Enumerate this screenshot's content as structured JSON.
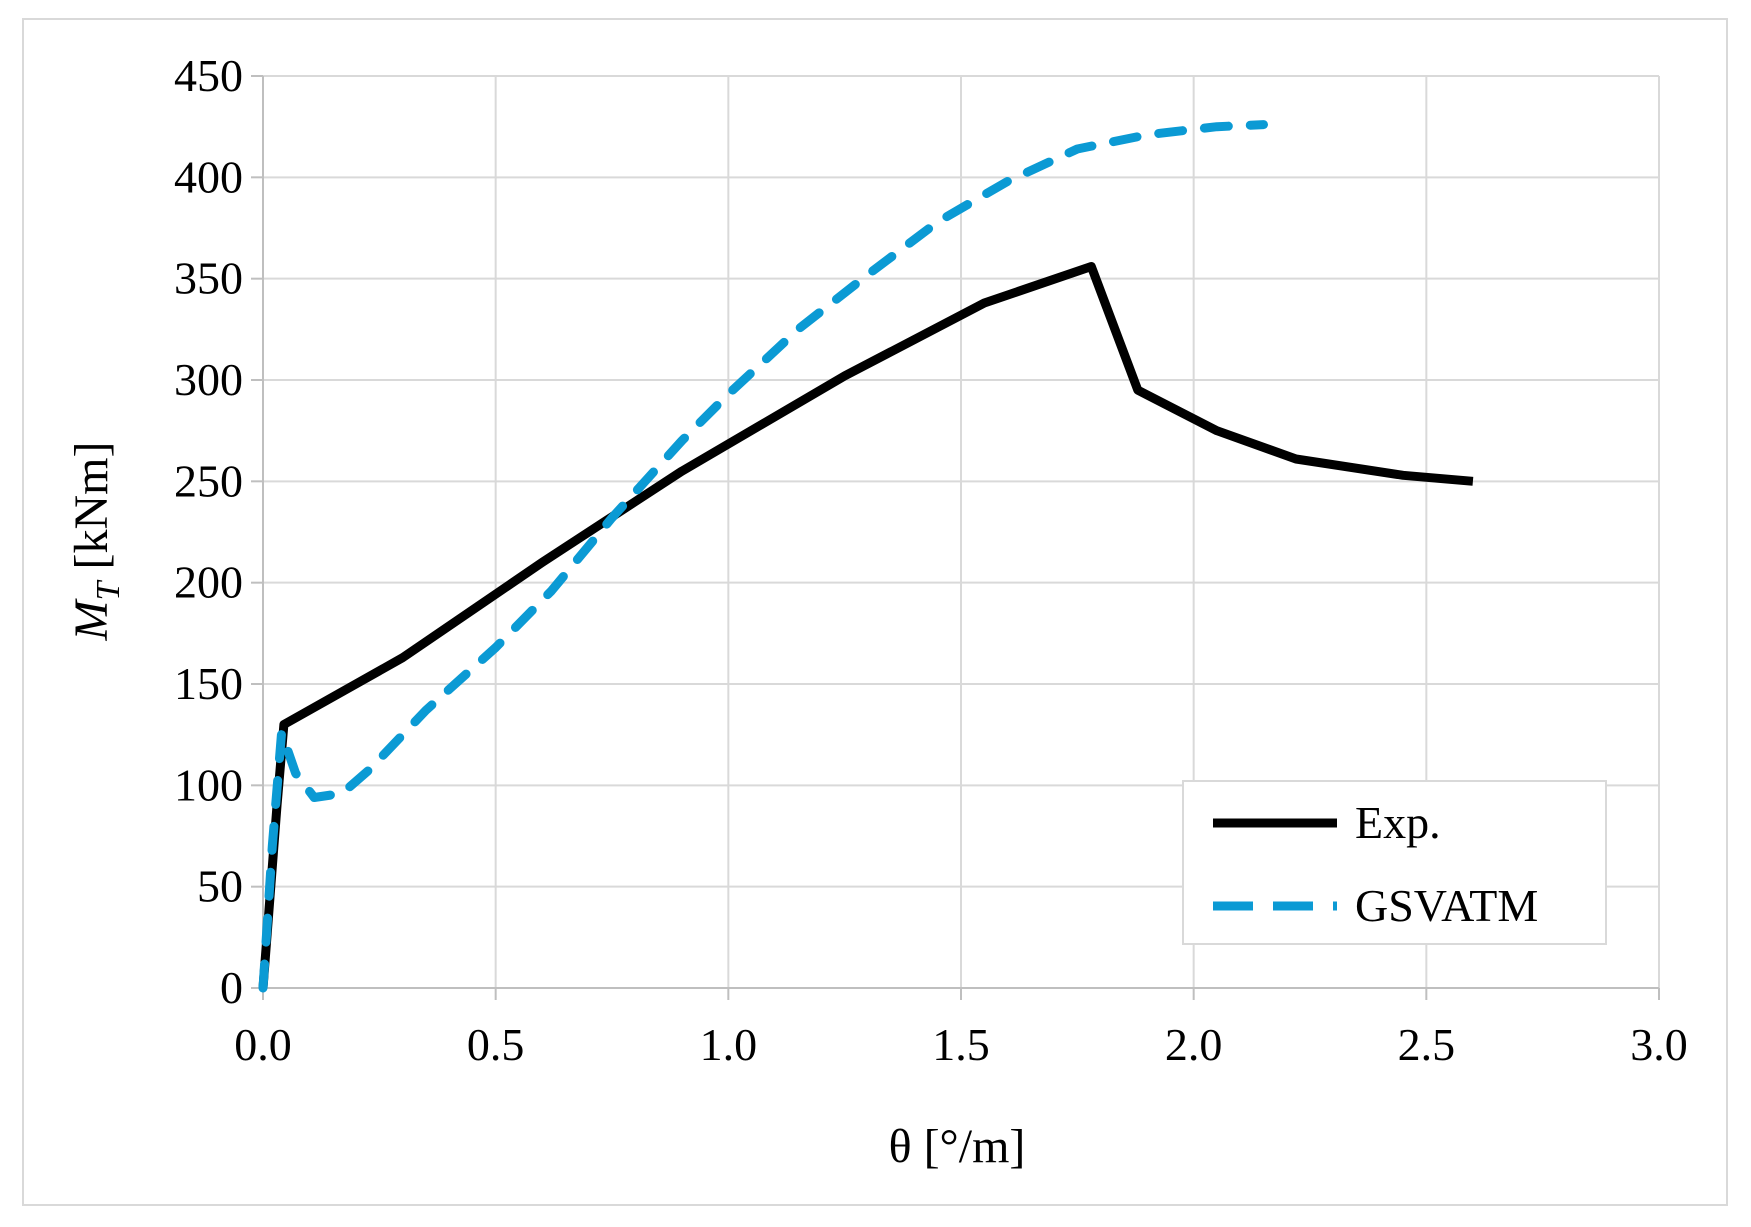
{
  "chart_data": {
    "type": "line",
    "title": "",
    "xlabel": "θ [°/m]",
    "ylabel_italic": "M",
    "ylabel_sub": "T",
    "ylabel_rest": " [kNm]",
    "xlim": [
      0,
      3.0
    ],
    "ylim": [
      0,
      450
    ],
    "xticks": [
      "0.0",
      "0.5",
      "1.0",
      "1.5",
      "2.0",
      "2.5",
      "3.0"
    ],
    "xtick_values": [
      0,
      0.5,
      1.0,
      1.5,
      2.0,
      2.5,
      3.0
    ],
    "yticks": [
      "0",
      "50",
      "100",
      "150",
      "200",
      "250",
      "300",
      "350",
      "400",
      "450"
    ],
    "ytick_values": [
      0,
      50,
      100,
      150,
      200,
      250,
      300,
      350,
      400,
      450
    ],
    "grid": true,
    "legend_position": "bottom-right",
    "series": [
      {
        "name": "Exp.",
        "color": "#000000",
        "style": "solid",
        "x": [
          0.0,
          0.03,
          0.045,
          0.3,
          0.6,
          0.9,
          1.25,
          1.55,
          1.78,
          1.88,
          2.05,
          2.22,
          2.45,
          2.6
        ],
        "y": [
          0,
          90,
          130,
          163,
          210,
          255,
          302,
          338,
          356,
          295,
          275,
          261,
          253,
          250
        ]
      },
      {
        "name": "GSVATM",
        "color": "#0b9ad4",
        "style": "dashed",
        "x": [
          0.0,
          0.02,
          0.04,
          0.07,
          0.11,
          0.17,
          0.23,
          0.35,
          0.5,
          0.62,
          0.75,
          0.9,
          1.0,
          1.15,
          1.3,
          1.45,
          1.6,
          1.75,
          1.9,
          2.05,
          2.15
        ],
        "y": [
          0,
          70,
          126,
          106,
          94,
          96,
          108,
          137,
          168,
          196,
          232,
          270,
          293,
          325,
          352,
          378,
          398,
          414,
          421,
          425,
          426
        ]
      }
    ]
  }
}
